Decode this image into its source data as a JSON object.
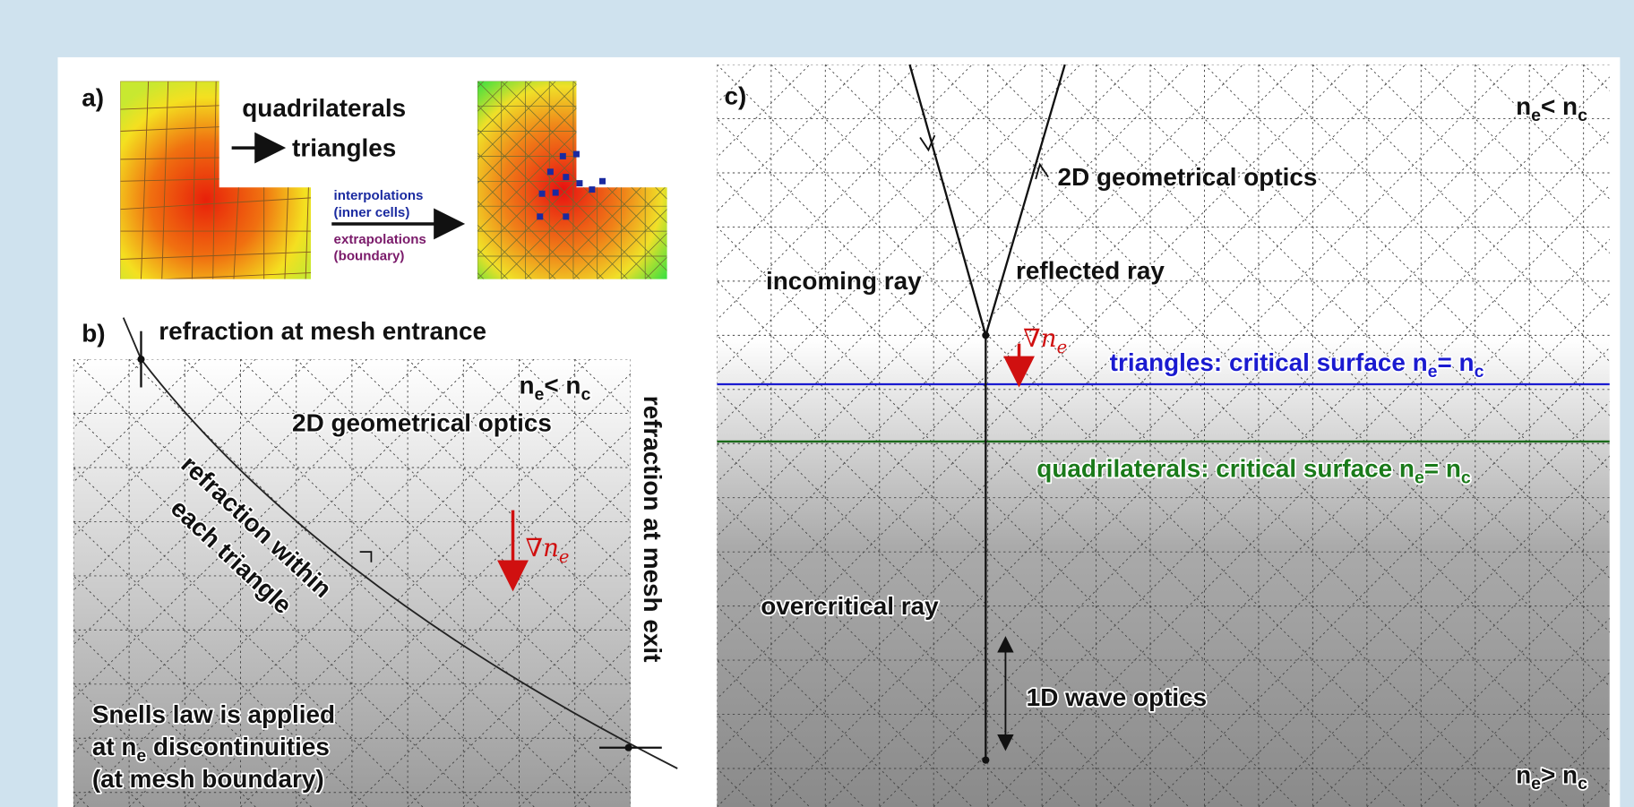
{
  "panel_a": {
    "label": "a)",
    "quad_text": "quadrilaterals",
    "tri_text": "triangles",
    "interp": [
      "interpolations",
      "(inner cells)"
    ],
    "extrap": [
      "extrapolations",
      "(boundary)"
    ]
  },
  "panel_b": {
    "label": "b)",
    "entrance": "refraction at mesh entrance",
    "region_label": [
      "n",
      "e",
      "< n",
      "c"
    ],
    "optics": "2D geometrical optics",
    "within": [
      "refraction within",
      "each triangle"
    ],
    "gradient": [
      "∇n",
      "e"
    ],
    "exit": "refraction at mesh exit",
    "snell": [
      [
        "Snells law is applied"
      ],
      [
        "at n",
        "e",
        " discontinuities"
      ],
      [
        "(at mesh boundary)"
      ]
    ]
  },
  "panel_c": {
    "label": "c)",
    "top_region": [
      "n",
      "e",
      "< n",
      "c"
    ],
    "optics": "2D geometrical optics",
    "incoming": "incoming ray",
    "reflected": "reflected ray",
    "gradient": [
      "∇n",
      "e"
    ],
    "triangles": [
      "triangles: critical surface n",
      "e",
      "= n",
      "c"
    ],
    "quadrilaterals": [
      "quadrilaterals: critical surface n",
      "e",
      "= n",
      "c"
    ],
    "overcritical": "overcritical ray",
    "wave": "1D wave optics",
    "bottom_region": [
      "n",
      "e",
      "> n",
      "c"
    ]
  }
}
